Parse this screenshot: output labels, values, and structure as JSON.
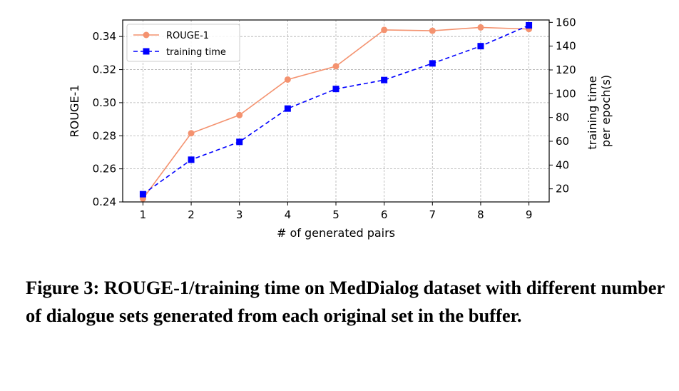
{
  "chart_data": {
    "type": "line",
    "x": [
      1,
      2,
      3,
      4,
      5,
      6,
      7,
      8,
      9
    ],
    "xlabel": "# of generated pairs",
    "xticks": [
      "1",
      "2",
      "3",
      "4",
      "5",
      "6",
      "7",
      "8",
      "9"
    ],
    "ylabel_left": "ROUGE-1",
    "ylim_left": [
      0.24,
      0.35
    ],
    "yticks_left": [
      "0.24",
      "0.26",
      "0.28",
      "0.30",
      "0.32",
      "0.34"
    ],
    "ylabel_right_lines": [
      "training time",
      "per epoch(s)"
    ],
    "ylim_right": [
      9,
      162
    ],
    "yticks_right": [
      "20",
      "40",
      "60",
      "80",
      "100",
      "120",
      "140",
      "160"
    ],
    "grid": true,
    "legend_position": "top-left",
    "series": [
      {
        "name": "ROUGE-1",
        "axis": "left",
        "color": "#f4926f",
        "marker": "circle",
        "linestyle": "solid",
        "values": [
          0.242,
          0.2815,
          0.2925,
          0.314,
          0.322,
          0.344,
          0.3435,
          0.3455,
          0.3445
        ]
      },
      {
        "name": "training time",
        "axis": "right",
        "color": "#0000ff",
        "marker": "square",
        "linestyle": "dashed",
        "values": [
          15.5,
          44.5,
          59.5,
          87.5,
          104,
          111.5,
          125.5,
          140,
          157.5
        ]
      }
    ]
  },
  "caption": "Figure 3: ROUGE-1/training time on MedDialog dataset with different number of dialogue sets generated from each original set in the buffer."
}
